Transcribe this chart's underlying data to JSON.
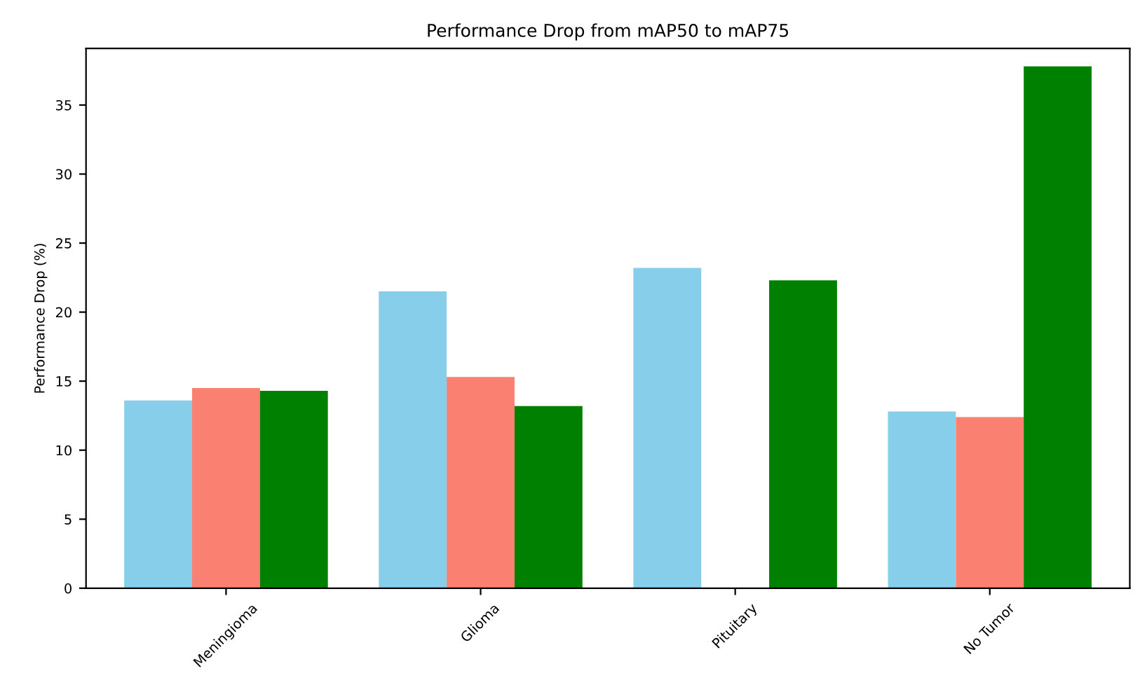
{
  "chart_data": {
    "type": "bar",
    "title": "Performance Drop from mAP50 to mAP75",
    "ylabel": "Performance Drop (%)",
    "categories": [
      "Meningioma",
      "Glioma",
      "Pituitary",
      "No Tumor"
    ],
    "series": [
      {
        "color": "#87ceeb",
        "values": [
          13.6,
          21.5,
          23.2,
          12.8
        ]
      },
      {
        "color": "#fa8072",
        "values": [
          14.5,
          15.3,
          0,
          12.4
        ]
      },
      {
        "color": "#008000",
        "values": [
          14.3,
          13.2,
          22.3,
          37.8
        ]
      }
    ],
    "ylim": [
      0,
      39.1
    ],
    "yticks": [
      0,
      5,
      10,
      15,
      20,
      25,
      30,
      35
    ],
    "grid": false
  }
}
